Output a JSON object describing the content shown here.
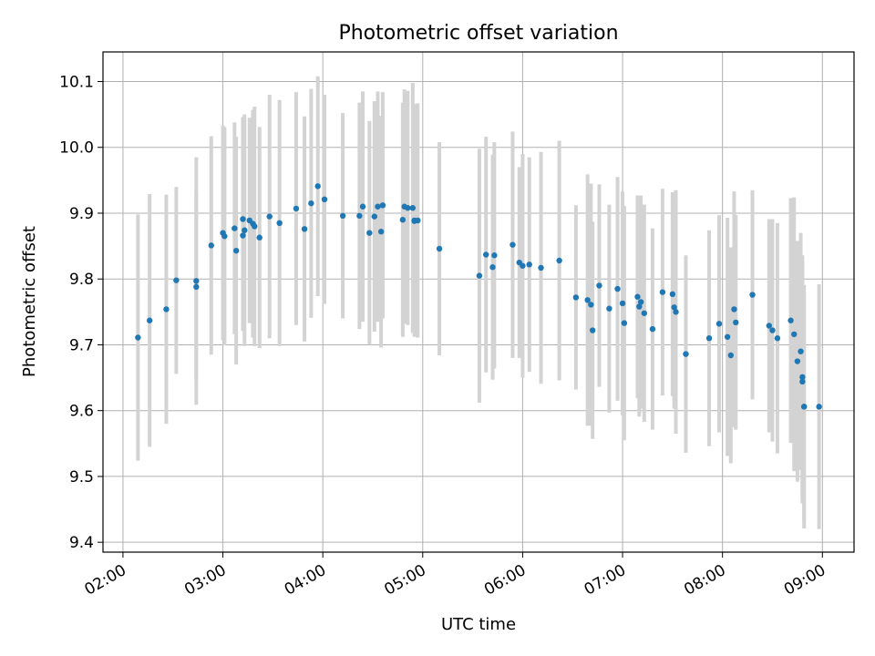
{
  "chart_data": {
    "type": "scatter",
    "title": "Photometric offset variation",
    "xlabel": "UTC time",
    "ylabel": "Photometric offset",
    "x_ticks": [
      "02:00",
      "03:00",
      "04:00",
      "05:00",
      "06:00",
      "07:00",
      "08:00",
      "09:00"
    ],
    "y_ticks": [
      "9.4",
      "9.5",
      "9.6",
      "9.7",
      "9.8",
      "9.9",
      "10.0",
      "10.1"
    ],
    "xlim": [
      "01:48",
      "09:19"
    ],
    "ylim": [
      9.385,
      10.145
    ],
    "grid": true,
    "colors": {
      "point": "#1f77b4",
      "errorbar": "#d3d3d3",
      "grid": "#b0b0b0"
    },
    "series": [
      {
        "x": [
          "02:09",
          "02:16",
          "02:26",
          "02:32",
          "02:44",
          "02:44",
          "02:53",
          "03:00",
          "03:01",
          "03:07",
          "03:08",
          "03:12",
          "03:12",
          "03:13",
          "03:16",
          "03:18",
          "03:19",
          "03:22",
          "03:28",
          "03:34",
          "03:44",
          "03:49",
          "03:53",
          "03:57",
          "04:01",
          "04:12",
          "04:22",
          "04:24",
          "04:28",
          "04:31",
          "04:33",
          "04:35",
          "04:36",
          "04:48",
          "04:49",
          "04:51",
          "04:54",
          "04:55",
          "04:55",
          "04:57",
          "05:10",
          "05:34",
          "05:38",
          "05:42",
          "05:43",
          "05:54",
          "05:58",
          "06:00",
          "06:04",
          "06:11",
          "06:22",
          "06:32",
          "06:39",
          "06:41",
          "06:42",
          "06:46",
          "06:52",
          "06:57",
          "07:00",
          "07:01",
          "07:09",
          "07:10",
          "07:11",
          "07:13",
          "07:18",
          "07:24",
          "07:30",
          "07:31",
          "07:32",
          "07:38",
          "07:52",
          "07:58",
          "08:03",
          "08:05",
          "08:07",
          "08:08",
          "08:18",
          "08:28",
          "08:30",
          "08:33",
          "08:41",
          "08:43",
          "08:45",
          "08:47",
          "08:48",
          "08:48",
          "08:49",
          "08:49",
          "08:58"
        ],
        "y": [
          9.711,
          9.737,
          9.754,
          9.798,
          9.788,
          9.797,
          9.851,
          9.87,
          9.865,
          9.877,
          9.843,
          9.891,
          9.866,
          9.874,
          9.889,
          9.884,
          9.88,
          9.863,
          9.895,
          9.885,
          9.907,
          9.876,
          9.915,
          9.941,
          9.921,
          9.896,
          9.896,
          9.91,
          9.87,
          9.895,
          9.91,
          9.872,
          9.912,
          9.89,
          9.91,
          9.908,
          9.908,
          9.888,
          9.889,
          9.889,
          9.846,
          9.805,
          9.837,
          9.818,
          9.836,
          9.852,
          9.825,
          9.82,
          9.822,
          9.817,
          9.828,
          9.772,
          9.768,
          9.761,
          9.722,
          9.79,
          9.755,
          9.785,
          9.763,
          9.733,
          9.773,
          9.758,
          9.765,
          9.748,
          9.724,
          9.78,
          9.777,
          9.757,
          9.75,
          9.686,
          9.71,
          9.732,
          9.712,
          9.684,
          9.754,
          9.734,
          9.776,
          9.729,
          9.722,
          9.71,
          9.737,
          9.716,
          9.675,
          9.69,
          9.651,
          9.644,
          9.606,
          9.606,
          9.606
        ],
        "err": [
          0.187,
          0.192,
          0.174,
          0.142,
          0.142,
          0.188,
          0.166,
          0.163,
          0.166,
          0.161,
          0.173,
          0.155,
          0.145,
          0.176,
          0.156,
          0.173,
          0.182,
          0.168,
          0.185,
          0.187,
          0.177,
          0.171,
          0.174,
          0.167,
          0.159,
          0.156,
          0.172,
          0.175,
          0.17,
          0.175,
          0.175,
          0.176,
          0.172,
          0.178,
          0.178,
          0.178,
          0.19,
          0.174,
          0.177,
          0.178,
          0.162,
          0.193,
          0.179,
          0.171,
          0.172,
          0.172,
          0.145,
          0.17,
          0.163,
          0.176,
          0.182,
          0.14,
          0.191,
          0.184,
          0.165,
          0.154,
          0.158,
          0.17,
          0.17,
          0.178,
          0.154,
          0.167,
          0.162,
          0.165,
          0.153,
          0.157,
          0.155,
          0.154,
          0.185,
          0.15,
          0.164,
          0.165,
          0.181,
          0.164,
          0.179,
          0.163,
          0.159,
          0.162,
          0.169,
          0.175,
          0.186,
          0.208,
          0.183,
          0.18,
          0.185,
          0.185,
          0.174,
          0.185,
          0.186
        ]
      }
    ]
  }
}
